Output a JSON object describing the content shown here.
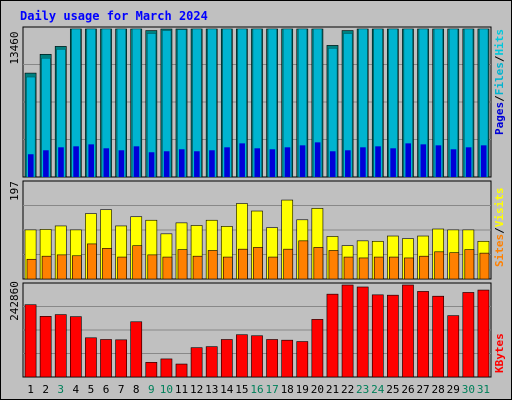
{
  "chart_data": {
    "type": "bar",
    "title": "Daily usage for March 2024",
    "categories": [
      "1",
      "2",
      "3",
      "4",
      "5",
      "6",
      "7",
      "8",
      "9",
      "10",
      "11",
      "12",
      "13",
      "14",
      "15",
      "16",
      "17",
      "18",
      "19",
      "20",
      "21",
      "22",
      "23",
      "24",
      "25",
      "26",
      "27",
      "28",
      "29",
      "30",
      "31"
    ],
    "weekend_days": [
      "3",
      "9",
      "10",
      "16",
      "17",
      "23",
      "24",
      "30",
      "31"
    ],
    "panels": [
      {
        "name": "traffic-counts",
        "y_tick_label": "13460",
        "ymax": 13460,
        "series": [
          {
            "name": "Hits",
            "color": "#00c8dc",
            "values": [
              10500,
              12400,
              13200,
              16800,
              16500,
              16200,
              16700,
              17500,
              14800,
              15000,
              15100,
              15200,
              15400,
              16600,
              17600,
              16400,
              16100,
              16800,
              17000,
              17400,
              13300,
              14800,
              16100,
              16500,
              15800,
              16700,
              16800,
              17100,
              15700,
              16300,
              17000
            ]
          },
          {
            "name": "Files",
            "color": "#00b4d0",
            "values": [
              10100,
              12000,
              12900,
              16600,
              16300,
              15900,
              16500,
              17400,
              14500,
              14800,
              14900,
              15000,
              15100,
              16400,
              17400,
              16200,
              15800,
              16600,
              16800,
              17200,
              13000,
              14500,
              15800,
              16300,
              15600,
              16500,
              16600,
              16900,
              15400,
              16100,
              16800
            ]
          },
          {
            "name": "Pages",
            "color": "#0000d8",
            "values": [
              2300,
              2700,
              3000,
              3100,
              3300,
              2900,
              2700,
              3100,
              2500,
              2600,
              2800,
              2600,
              2700,
              3000,
              3400,
              2900,
              2800,
              3000,
              3200,
              3500,
              2600,
              2700,
              3000,
              3100,
              2900,
              3400,
              3300,
              3200,
              2800,
              3000,
              3200
            ]
          }
        ]
      },
      {
        "name": "visitors",
        "y_tick_label": "197",
        "ymax": 197,
        "series": [
          {
            "name": "Visits",
            "color": "#ffff00",
            "values": [
              112,
              113,
              121,
              112,
              149,
              158,
              121,
              142,
              134,
              103,
              128,
              122,
              134,
              120,
              172,
              155,
              117,
              180,
              135,
              161,
              97,
              76,
              87,
              86,
              98,
              92,
              98,
              114,
              112,
              112,
              86
            ]
          },
          {
            "name": "Sites",
            "color": "#ff8000",
            "values": [
              45,
              52,
              55,
              53,
              80,
              70,
              50,
              76,
              55,
              50,
              67,
              52,
              65,
              50,
              68,
              72,
              50,
              68,
              87,
              72,
              65,
              50,
              48,
              50,
              50,
              48,
              52,
              62,
              60,
              67,
              59
            ]
          }
        ]
      },
      {
        "name": "volume",
        "y_tick_label": "242860",
        "ymax": 242860,
        "series": [
          {
            "name": "KBytes",
            "color": "#ff0000",
            "values": [
              212000,
              178000,
              183000,
              177000,
              115000,
              110000,
              109000,
              162000,
              43000,
              53000,
              38000,
              86000,
              89000,
              110000,
              124000,
              121000,
              110000,
              108000,
              104000,
              169000,
              243000,
              278000,
              264000,
              241000,
              240000,
              289000,
              251000,
              237000,
              180000,
              248000,
              255000
            ]
          }
        ]
      }
    ],
    "legend_placement": "right side, rotated vertically",
    "grid": true,
    "colors": {
      "background": "#c0c0c0",
      "plot_background": "#ffffff",
      "title": "#0000ff",
      "weekday_label": "#000000",
      "weekend_label": "#00805a",
      "legend_separator": "#000000"
    }
  }
}
